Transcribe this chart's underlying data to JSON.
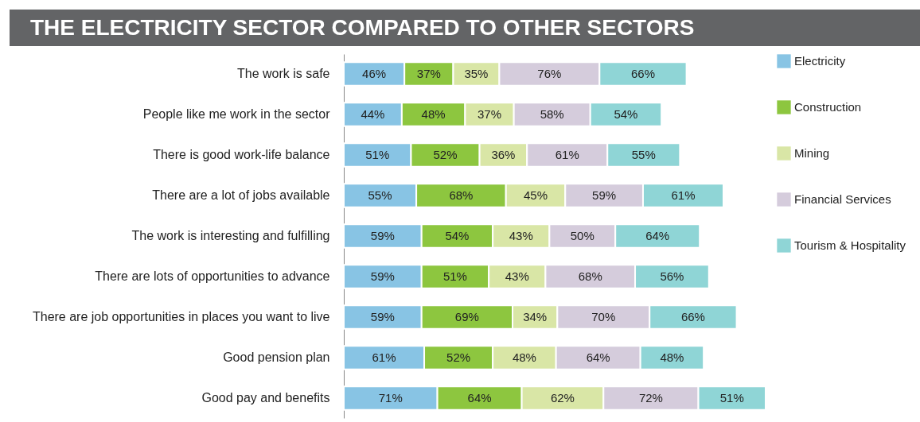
{
  "chart_data": {
    "type": "bar",
    "title": "THE ELECTRICITY SECTOR COMPARED TO OTHER SECTORS",
    "orientation": "horizontal",
    "stacked": true,
    "legend": "right",
    "categories": [
      "The work is safe",
      "People like me work in the sector",
      "There is good work-life balance",
      "There are a lot of jobs available",
      "The work is interesting and fulfilling",
      "There are lots of opportunities to advance",
      "There are job opportunities in places you want to live",
      "Good pension plan",
      "Good pay and benefits"
    ],
    "series": [
      {
        "name": "Electricity",
        "color": "#88c4e4",
        "values": [
          46,
          44,
          51,
          55,
          59,
          59,
          59,
          61,
          71
        ],
        "value_labels": [
          "46%",
          "44%",
          "51%",
          "55%",
          "59%",
          "59%",
          "59%",
          "61%",
          "71%"
        ]
      },
      {
        "name": "Construction",
        "color": "#8dc63f",
        "values": [
          37,
          48,
          52,
          68,
          54,
          51,
          69,
          52,
          64
        ],
        "value_labels": [
          "37%",
          "48%",
          "52%",
          "68%",
          "54%",
          "51%",
          "69%",
          "52%",
          "64%"
        ]
      },
      {
        "name": "Mining",
        "color": "#d9e6a6",
        "values": [
          35,
          37,
          36,
          45,
          43,
          43,
          34,
          48,
          62
        ],
        "value_labels": [
          "35%",
          "37%",
          "36%",
          "45%",
          "43%",
          "43%",
          "34%",
          "48%",
          "62%"
        ]
      },
      {
        "name": "Financial Services",
        "color": "#d5ccdc",
        "values": [
          76,
          58,
          61,
          59,
          50,
          68,
          70,
          64,
          72
        ],
        "value_labels": [
          "76%",
          "58%",
          "61%",
          "59%",
          "50%",
          "68%",
          "70%",
          "64%",
          "72%"
        ]
      },
      {
        "name": "Tourism & Hospitality",
        "color": "#8fd5d6",
        "values": [
          66,
          54,
          55,
          61,
          64,
          56,
          66,
          48,
          51
        ],
        "value_labels": [
          "66%",
          "54%",
          "55%",
          "61%",
          "64%",
          "56%",
          "66%",
          "48%",
          "51%"
        ]
      }
    ]
  }
}
